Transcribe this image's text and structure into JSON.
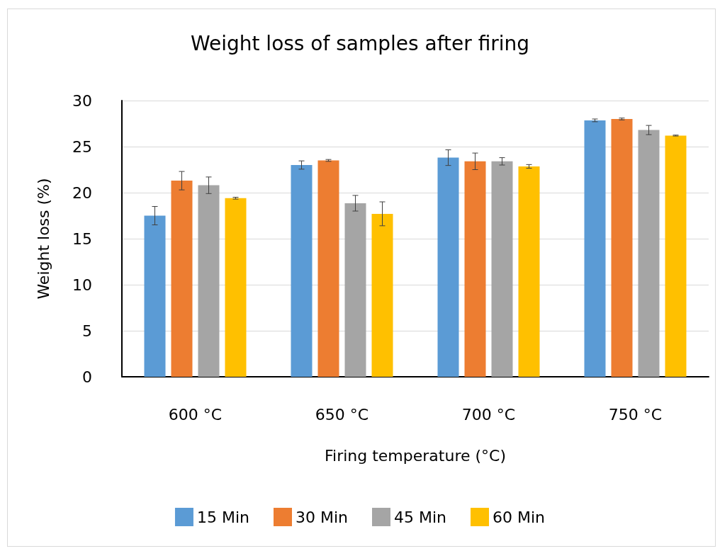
{
  "chart_data": {
    "type": "bar",
    "title": "Weight loss of samples after firing",
    "xlabel": "Firing temperature (°C)",
    "ylabel": "Weight loss (%)",
    "categories": [
      "600 °C",
      "650 °C",
      "700 °C",
      "750 °C"
    ],
    "series": [
      {
        "name": "15 Min",
        "color": "#5b9bd5",
        "values": [
          17.5,
          23.0,
          23.8,
          27.85
        ],
        "errors": [
          1.0,
          0.45,
          0.85,
          0.15
        ]
      },
      {
        "name": "30 Min",
        "color": "#ed7d31",
        "values": [
          21.3,
          23.5,
          23.4,
          28.0
        ],
        "errors": [
          1.0,
          0.1,
          0.9,
          0.1
        ]
      },
      {
        "name": "45 Min",
        "color": "#a5a5a5",
        "values": [
          20.8,
          18.85,
          23.4,
          26.8
        ],
        "errors": [
          0.9,
          0.85,
          0.4,
          0.5
        ]
      },
      {
        "name": "60 Min",
        "color": "#ffc000",
        "values": [
          19.4,
          17.7,
          22.85,
          26.2
        ],
        "errors": [
          0.1,
          1.3,
          0.2,
          0.05
        ]
      }
    ],
    "ylim": [
      0,
      30
    ],
    "yticks": [
      0,
      5,
      10,
      15,
      20,
      25,
      30
    ],
    "grid": "y",
    "legend": "bottom"
  }
}
